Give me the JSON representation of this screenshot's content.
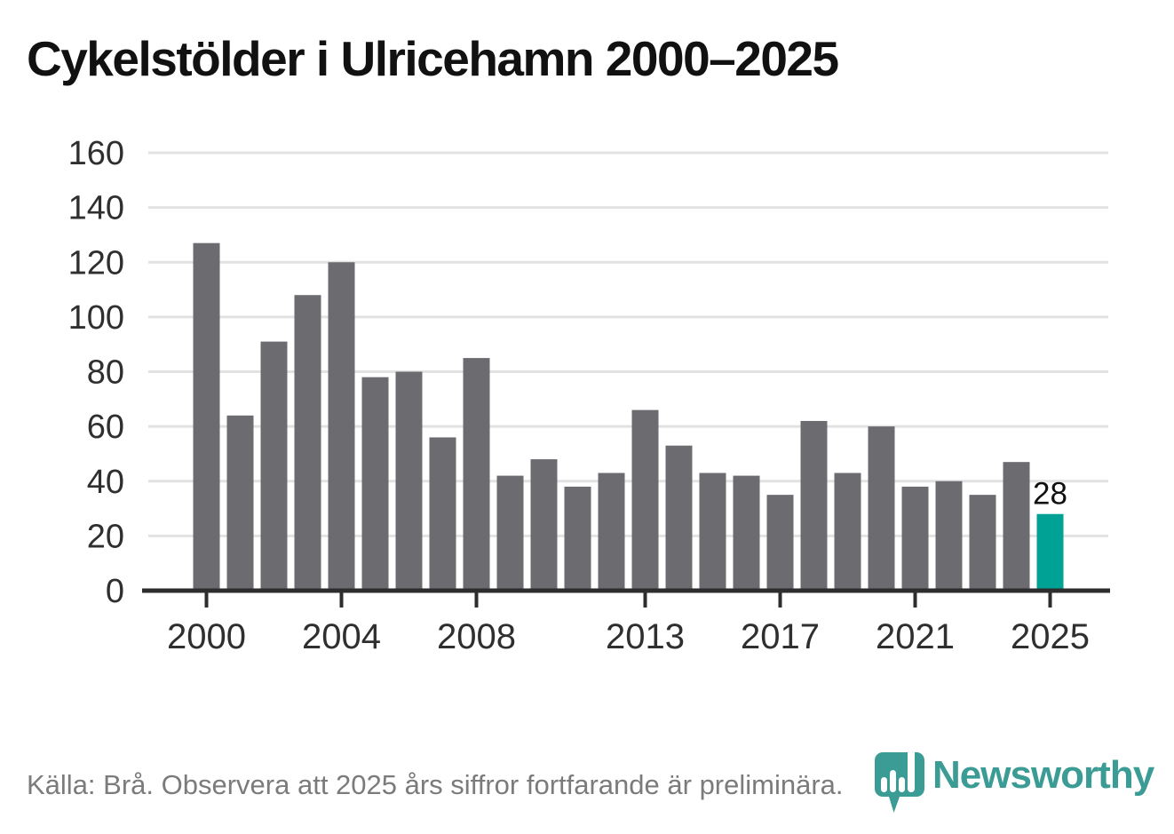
{
  "title": "Cykelstölder i Ulricehamn 2000–2025",
  "chart_data": {
    "type": "bar",
    "title": "Cykelstölder i Ulricehamn 2000–2025",
    "categories": [
      2000,
      2001,
      2002,
      2003,
      2004,
      2005,
      2006,
      2007,
      2008,
      2009,
      2010,
      2011,
      2012,
      2013,
      2014,
      2015,
      2016,
      2017,
      2018,
      2019,
      2020,
      2021,
      2022,
      2023,
      2024,
      2025
    ],
    "values": [
      127,
      64,
      91,
      108,
      120,
      78,
      80,
      56,
      85,
      42,
      48,
      38,
      43,
      66,
      53,
      43,
      42,
      35,
      62,
      43,
      60,
      38,
      40,
      35,
      47,
      28
    ],
    "xlabel": "",
    "ylabel": "",
    "ylim": [
      0,
      160
    ],
    "y_ticks": [
      0,
      20,
      40,
      60,
      80,
      100,
      120,
      140,
      160
    ],
    "x_tick_labels": [
      2000,
      2004,
      2008,
      2013,
      2017,
      2021,
      2025
    ],
    "grid": true,
    "legend": false,
    "bar_color": "#6c6b70",
    "highlight_year": 2025,
    "highlight_color": "#00a295",
    "annotation": {
      "year": 2025,
      "text": "28"
    },
    "grid_color": "#e2e2e2",
    "axis_color": "#2d2d2d",
    "tick_label_color": "#2f2f2f",
    "annotation_color": "#111111"
  },
  "footer": {
    "source_note": "Källa: Brå. Observera att 2025 års siffror fortfarande är preliminära.",
    "logo_text": "Newsworthy",
    "logo_color": "#3b9c95"
  }
}
